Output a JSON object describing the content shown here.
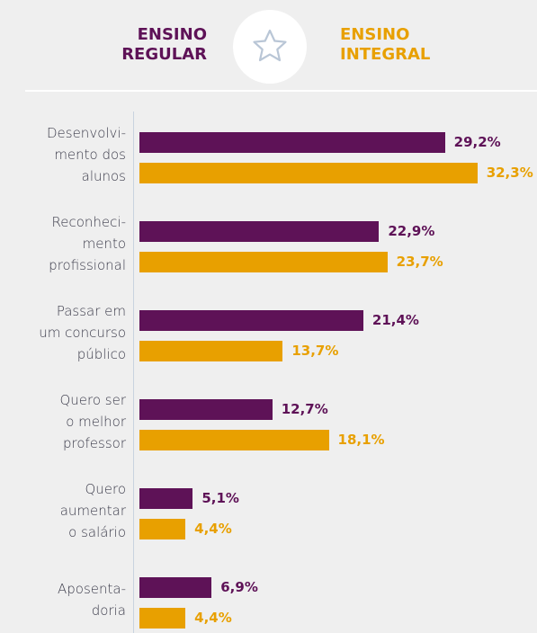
{
  "chart_data": {
    "type": "bar",
    "orientation": "horizontal",
    "categories": [
      "Desenvolvi-\nmento dos\nalunos",
      "Reconheci-\nmento\nprofissional",
      "Passar em\num concurso\npúblico",
      "Quero ser\no melhor\nprofessor",
      "Quero\naumentar\no salário",
      "Aposenta-\ndoria"
    ],
    "series": [
      {
        "name": "ENSINO\nREGULAR",
        "color": "#5e1257",
        "values": [
          29.2,
          22.9,
          21.4,
          12.7,
          5.1,
          6.9
        ],
        "value_labels": [
          "29,2%",
          "22,9%",
          "21,4%",
          "12,7%",
          "5,1%",
          "6,9%"
        ]
      },
      {
        "name": "ENSINO\nINTEGRAL",
        "color": "#e8a000",
        "values": [
          32.3,
          23.7,
          13.7,
          18.1,
          4.4,
          4.4
        ],
        "value_labels": [
          "32,3%",
          "23,7%",
          "13,7%",
          "18,1%",
          "4,4%",
          "4,4%"
        ]
      }
    ],
    "xlim": [
      0,
      38
    ]
  }
}
